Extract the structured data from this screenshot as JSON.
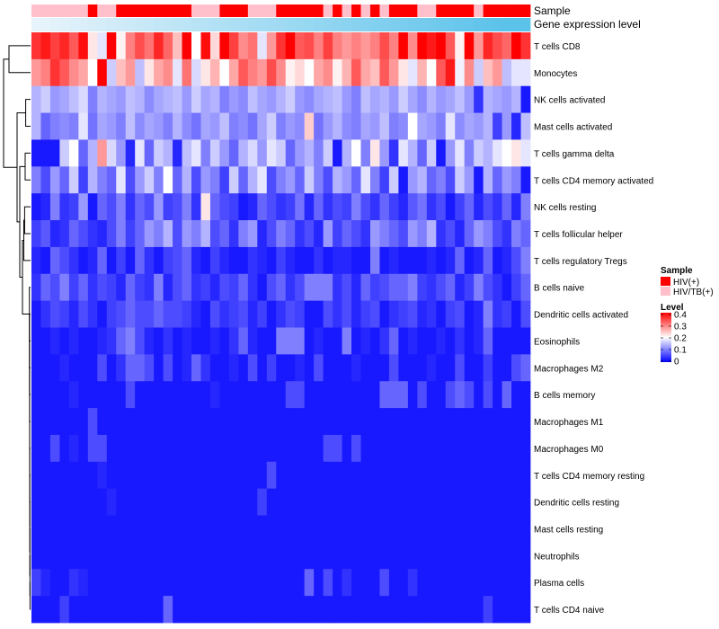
{
  "chart_data": {
    "type": "heatmap",
    "title": "",
    "annotation_tracks": [
      "Sample",
      "Gene expression level"
    ],
    "rows": [
      "T cells CD8",
      "Monocytes",
      "NK cells activated",
      "Mast cells activated",
      "T cells gamma delta",
      "T cells CD4 memory activated",
      "NK cells resting",
      "T cells follicular helper",
      "T cells regulatory  Tregs",
      "B cells naive",
      "Dendritic cells activated",
      "Eosinophils",
      "Macrophages M2",
      "B cells memory",
      "Macrophages M1",
      "Macrophages M0",
      "T cells CD4 memory resting",
      "Dendritic cells resting",
      "Mast cells resting",
      "Neutrophils",
      "Plasma cells",
      "T cells CD4 naive"
    ],
    "sample_groups": [
      "HIV/TB(+)",
      "HIV/TB(+)",
      "HIV/TB(+)",
      "HIV/TB(+)",
      "HIV/TB(+)",
      "HIV/TB(+)",
      "HIV(+)",
      "HIV/TB(+)",
      "HIV/TB(+)",
      "HIV(+)",
      "HIV(+)",
      "HIV(+)",
      "HIV(+)",
      "HIV(+)",
      "HIV(+)",
      "HIV(+)",
      "HIV(+)",
      "HIV/TB(+)",
      "HIV/TB(+)",
      "HIV/TB(+)",
      "HIV(+)",
      "HIV(+)",
      "HIV(+)",
      "HIV/TB(+)",
      "HIV/TB(+)",
      "HIV/TB(+)",
      "HIV(+)",
      "HIV(+)",
      "HIV(+)",
      "HIV(+)",
      "HIV(+)",
      "HIV/TB(+)",
      "HIV(+)",
      "HIV/TB(+)",
      "HIV(+)",
      "HIV/TB(+)",
      "HIV(+)",
      "HIV/TB(+)",
      "HIV(+)",
      "HIV(+)",
      "HIV(+)",
      "HIV/TB(+)",
      "HIV/TB(+)",
      "HIV(+)",
      "HIV(+)",
      "HIV(+)",
      "HIV(+)",
      "HIV/TB(+)",
      "HIV(+)",
      "HIV(+)",
      "HIV(+)",
      "HIV(+)",
      "HIV(+)"
    ],
    "gene_expression_level": [
      0.0,
      0.02,
      0.04,
      0.06,
      0.08,
      0.1,
      0.12,
      0.14,
      0.16,
      0.18,
      0.2,
      0.22,
      0.24,
      0.26,
      0.28,
      0.3,
      0.32,
      0.34,
      0.36,
      0.38,
      0.4,
      0.42,
      0.44,
      0.46,
      0.48,
      0.5,
      0.52,
      0.54,
      0.56,
      0.58,
      0.6,
      0.62,
      0.64,
      0.66,
      0.68,
      0.7,
      0.72,
      0.74,
      0.76,
      0.78,
      0.8,
      0.82,
      0.84,
      0.86,
      0.88,
      0.9,
      0.92,
      0.94,
      0.96,
      0.98,
      1.0,
      1.0,
      1.0
    ],
    "values": [
      [
        0.36,
        0.38,
        0.35,
        0.37,
        0.33,
        0.39,
        0.22,
        0.18,
        0.4,
        0.21,
        0.3,
        0.34,
        0.31,
        0.37,
        0.32,
        0.25,
        0.41,
        0.2,
        0.39,
        0.23,
        0.4,
        0.35,
        0.29,
        0.31,
        0.18,
        0.28,
        0.36,
        0.4,
        0.33,
        0.34,
        0.3,
        0.35,
        0.3,
        0.28,
        0.3,
        0.28,
        0.3,
        0.34,
        0.3,
        0.4,
        0.29,
        0.41,
        0.38,
        0.4,
        0.33,
        0.21,
        0.4,
        0.28,
        0.37,
        0.34,
        0.32,
        0.4,
        0.36
      ],
      [
        0.28,
        0.3,
        0.36,
        0.33,
        0.29,
        0.27,
        0.2,
        0.4,
        0.16,
        0.25,
        0.28,
        0.15,
        0.22,
        0.27,
        0.29,
        0.18,
        0.31,
        0.17,
        0.22,
        0.26,
        0.2,
        0.27,
        0.33,
        0.3,
        0.28,
        0.34,
        0.29,
        0.21,
        0.23,
        0.2,
        0.27,
        0.29,
        0.21,
        0.26,
        0.33,
        0.27,
        0.25,
        0.33,
        0.28,
        0.22,
        0.18,
        0.26,
        0.2,
        0.33,
        0.38,
        0.19,
        0.29,
        0.16,
        0.25,
        0.28,
        0.15,
        0.18,
        0.18
      ],
      [
        0.14,
        0.16,
        0.12,
        0.13,
        0.15,
        0.17,
        0.1,
        0.14,
        0.13,
        0.12,
        0.15,
        0.14,
        0.11,
        0.13,
        0.14,
        0.15,
        0.12,
        0.16,
        0.13,
        0.14,
        0.1,
        0.12,
        0.11,
        0.15,
        0.13,
        0.12,
        0.14,
        0.16,
        0.12,
        0.11,
        0.13,
        0.14,
        0.15,
        0.12,
        0.1,
        0.15,
        0.13,
        0.14,
        0.12,
        0.16,
        0.13,
        0.11,
        0.14,
        0.12,
        0.13,
        0.15,
        0.12,
        0.04,
        0.14,
        0.13,
        0.12,
        0.14,
        0.02
      ],
      [
        0.14,
        0.08,
        0.1,
        0.11,
        0.1,
        0.18,
        0.09,
        0.13,
        0.12,
        0.1,
        0.15,
        0.11,
        0.13,
        0.12,
        0.1,
        0.14,
        0.11,
        0.09,
        0.13,
        0.12,
        0.15,
        0.1,
        0.11,
        0.09,
        0.13,
        0.16,
        0.1,
        0.12,
        0.11,
        0.24,
        0.09,
        0.12,
        0.14,
        0.11,
        0.1,
        0.13,
        0.12,
        0.15,
        0.1,
        0.11,
        0.2,
        0.13,
        0.12,
        0.1,
        0.18,
        0.11,
        0.13,
        0.12,
        0.14,
        0.05,
        0.12,
        0.03,
        0.15
      ],
      [
        0.02,
        0.02,
        0.02,
        0.16,
        0.2,
        0.08,
        0.14,
        0.28,
        0.17,
        0.12,
        0.03,
        0.18,
        0.08,
        0.16,
        0.14,
        0.03,
        0.15,
        0.18,
        0.1,
        0.16,
        0.12,
        0.08,
        0.14,
        0.17,
        0.12,
        0.18,
        0.16,
        0.08,
        0.12,
        0.14,
        0.1,
        0.16,
        0.02,
        0.14,
        0.2,
        0.1,
        0.22,
        0.12,
        0.04,
        0.18,
        0.14,
        0.08,
        0.16,
        0.02,
        0.12,
        0.18,
        0.1,
        0.16,
        0.14,
        0.18,
        0.2,
        0.22,
        0.18
      ],
      [
        0.1,
        0.06,
        0.12,
        0.08,
        0.16,
        0.05,
        0.14,
        0.1,
        0.08,
        0.18,
        0.06,
        0.12,
        0.16,
        0.1,
        0.2,
        0.08,
        0.14,
        0.06,
        0.12,
        0.1,
        0.05,
        0.16,
        0.08,
        0.14,
        0.18,
        0.06,
        0.1,
        0.12,
        0.08,
        0.16,
        0.1,
        0.06,
        0.14,
        0.12,
        0.08,
        0.18,
        0.1,
        0.05,
        0.16,
        0.02,
        0.12,
        0.14,
        0.08,
        0.1,
        0.06,
        0.16,
        0.12,
        0.02,
        0.14,
        0.08,
        0.12,
        0.1,
        0.02
      ],
      [
        0.02,
        0.03,
        0.1,
        0.04,
        0.05,
        0.12,
        0.02,
        0.08,
        0.06,
        0.1,
        0.04,
        0.08,
        0.06,
        0.12,
        0.05,
        0.06,
        0.1,
        0.04,
        0.22,
        0.08,
        0.06,
        0.05,
        0.02,
        0.03,
        0.08,
        0.06,
        0.04,
        0.05,
        0.09,
        0.03,
        0.08,
        0.04,
        0.06,
        0.05,
        0.1,
        0.06,
        0.04,
        0.08,
        0.05,
        0.03,
        0.07,
        0.09,
        0.04,
        0.06,
        0.02,
        0.05,
        0.08,
        0.03,
        0.06,
        0.04,
        0.08,
        0.03,
        0.1
      ],
      [
        0.05,
        0.07,
        0.03,
        0.04,
        0.08,
        0.06,
        0.04,
        0.03,
        0.06,
        0.1,
        0.05,
        0.08,
        0.12,
        0.1,
        0.14,
        0.06,
        0.12,
        0.1,
        0.14,
        0.06,
        0.08,
        0.04,
        0.1,
        0.12,
        0.03,
        0.06,
        0.1,
        0.08,
        0.04,
        0.06,
        0.03,
        0.12,
        0.05,
        0.08,
        0.06,
        0.04,
        0.12,
        0.1,
        0.08,
        0.06,
        0.12,
        0.1,
        0.14,
        0.04,
        0.06,
        0.03,
        0.08,
        0.12,
        0.1,
        0.06,
        0.04,
        0.1,
        0.08
      ],
      [
        0.03,
        0.02,
        0.08,
        0.06,
        0.04,
        0.02,
        0.03,
        0.08,
        0.02,
        0.05,
        0.02,
        0.08,
        0.04,
        0.02,
        0.05,
        0.06,
        0.08,
        0.03,
        0.02,
        0.05,
        0.03,
        0.02,
        0.02,
        0.04,
        0.03,
        0.02,
        0.05,
        0.03,
        0.02,
        0.02,
        0.04,
        0.02,
        0.03,
        0.03,
        0.02,
        0.02,
        0.1,
        0.02,
        0.03,
        0.02,
        0.02,
        0.02,
        0.03,
        0.02,
        0.03,
        0.08,
        0.02,
        0.03,
        0.08,
        0.02,
        0.03,
        0.06,
        0.1
      ],
      [
        0.04,
        0.08,
        0.06,
        0.1,
        0.05,
        0.08,
        0.04,
        0.06,
        0.05,
        0.03,
        0.08,
        0.05,
        0.04,
        0.1,
        0.03,
        0.06,
        0.08,
        0.04,
        0.05,
        0.03,
        0.06,
        0.05,
        0.08,
        0.04,
        0.02,
        0.06,
        0.08,
        0.04,
        0.06,
        0.1,
        0.1,
        0.1,
        0.04,
        0.06,
        0.03,
        0.08,
        0.05,
        0.06,
        0.08,
        0.08,
        0.1,
        0.05,
        0.04,
        0.06,
        0.08,
        0.03,
        0.05,
        0.1,
        0.06,
        0.04,
        0.02,
        0.05,
        0.08
      ],
      [
        0.02,
        0.04,
        0.06,
        0.05,
        0.03,
        0.06,
        0.04,
        0.02,
        0.05,
        0.06,
        0.08,
        0.06,
        0.06,
        0.08,
        0.06,
        0.06,
        0.05,
        0.03,
        0.02,
        0.06,
        0.04,
        0.05,
        0.06,
        0.03,
        0.05,
        0.02,
        0.04,
        0.06,
        0.05,
        0.02,
        0.02,
        0.06,
        0.04,
        0.06,
        0.03,
        0.05,
        0.06,
        0.02,
        0.04,
        0.05,
        0.06,
        0.03,
        0.04,
        0.02,
        0.05,
        0.06,
        0.02,
        0.03,
        0.1,
        0.04,
        0.05,
        0.02,
        0.06
      ],
      [
        0.02,
        0.02,
        0.03,
        0.02,
        0.03,
        0.02,
        0.02,
        0.03,
        0.04,
        0.08,
        0.1,
        0.06,
        0.03,
        0.02,
        0.04,
        0.02,
        0.03,
        0.02,
        0.02,
        0.03,
        0.02,
        0.04,
        0.08,
        0.03,
        0.02,
        0.02,
        0.1,
        0.1,
        0.1,
        0.02,
        0.03,
        0.02,
        0.02,
        0.1,
        0.02,
        0.03,
        0.02,
        0.04,
        0.08,
        0.02,
        0.03,
        0.02,
        0.02,
        0.03,
        0.02,
        0.04,
        0.02,
        0.03,
        0.08,
        0.02,
        0.02,
        0.02,
        0.02
      ],
      [
        0.02,
        0.02,
        0.02,
        0.03,
        0.02,
        0.02,
        0.02,
        0.06,
        0.02,
        0.04,
        0.08,
        0.08,
        0.06,
        0.02,
        0.06,
        0.02,
        0.03,
        0.08,
        0.04,
        0.02,
        0.02,
        0.03,
        0.02,
        0.06,
        0.02,
        0.05,
        0.02,
        0.02,
        0.03,
        0.02,
        0.06,
        0.02,
        0.02,
        0.02,
        0.03,
        0.02,
        0.02,
        0.02,
        0.06,
        0.02,
        0.02,
        0.02,
        0.03,
        0.02,
        0.02,
        0.06,
        0.02,
        0.02,
        0.05,
        0.02,
        0.02,
        0.06,
        0.08
      ],
      [
        0.02,
        0.02,
        0.02,
        0.02,
        0.03,
        0.02,
        0.02,
        0.02,
        0.02,
        0.02,
        0.06,
        0.02,
        0.02,
        0.02,
        0.02,
        0.02,
        0.02,
        0.02,
        0.02,
        0.03,
        0.02,
        0.02,
        0.02,
        0.02,
        0.02,
        0.02,
        0.02,
        0.06,
        0.06,
        0.02,
        0.02,
        0.02,
        0.02,
        0.02,
        0.02,
        0.02,
        0.02,
        0.08,
        0.08,
        0.08,
        0.02,
        0.06,
        0.02,
        0.02,
        0.06,
        0.08,
        0.06,
        0.02,
        0.06,
        0.02,
        0.08,
        0.02,
        0.02
      ],
      [
        0.02,
        0.02,
        0.02,
        0.02,
        0.02,
        0.02,
        0.06,
        0.02,
        0.02,
        0.02,
        0.02,
        0.02,
        0.02,
        0.02,
        0.02,
        0.02,
        0.02,
        0.02,
        0.02,
        0.02,
        0.02,
        0.02,
        0.02,
        0.02,
        0.02,
        0.02,
        0.02,
        0.02,
        0.02,
        0.02,
        0.02,
        0.02,
        0.02,
        0.02,
        0.02,
        0.02,
        0.02,
        0.02,
        0.02,
        0.02,
        0.02,
        0.02,
        0.02,
        0.02,
        0.02,
        0.02,
        0.02,
        0.02,
        0.02,
        0.02,
        0.02,
        0.02,
        0.02
      ],
      [
        0.02,
        0.02,
        0.06,
        0.02,
        0.03,
        0.02,
        0.06,
        0.06,
        0.02,
        0.02,
        0.02,
        0.02,
        0.02,
        0.02,
        0.02,
        0.02,
        0.02,
        0.02,
        0.02,
        0.02,
        0.02,
        0.02,
        0.02,
        0.02,
        0.02,
        0.02,
        0.02,
        0.02,
        0.02,
        0.02,
        0.02,
        0.06,
        0.06,
        0.02,
        0.06,
        0.02,
        0.02,
        0.02,
        0.02,
        0.02,
        0.02,
        0.02,
        0.02,
        0.02,
        0.02,
        0.02,
        0.02,
        0.02,
        0.02,
        0.02,
        0.02,
        0.02,
        0.02
      ],
      [
        0.02,
        0.02,
        0.02,
        0.02,
        0.02,
        0.02,
        0.02,
        0.03,
        0.02,
        0.02,
        0.02,
        0.02,
        0.02,
        0.02,
        0.02,
        0.02,
        0.02,
        0.02,
        0.02,
        0.02,
        0.02,
        0.02,
        0.02,
        0.02,
        0.02,
        0.06,
        0.02,
        0.02,
        0.02,
        0.02,
        0.02,
        0.02,
        0.02,
        0.02,
        0.02,
        0.02,
        0.02,
        0.02,
        0.02,
        0.02,
        0.02,
        0.02,
        0.02,
        0.02,
        0.02,
        0.02,
        0.02,
        0.02,
        0.02,
        0.02,
        0.02,
        0.02,
        0.02
      ],
      [
        0.02,
        0.02,
        0.02,
        0.02,
        0.02,
        0.02,
        0.02,
        0.02,
        0.03,
        0.02,
        0.02,
        0.02,
        0.02,
        0.02,
        0.02,
        0.02,
        0.02,
        0.02,
        0.02,
        0.02,
        0.02,
        0.02,
        0.02,
        0.02,
        0.05,
        0.02,
        0.02,
        0.02,
        0.02,
        0.02,
        0.02,
        0.02,
        0.02,
        0.02,
        0.02,
        0.02,
        0.02,
        0.02,
        0.02,
        0.02,
        0.02,
        0.02,
        0.02,
        0.02,
        0.02,
        0.02,
        0.02,
        0.02,
        0.02,
        0.02,
        0.02,
        0.02,
        0.02
      ],
      [
        0.02,
        0.02,
        0.02,
        0.02,
        0.02,
        0.02,
        0.02,
        0.02,
        0.02,
        0.02,
        0.02,
        0.02,
        0.02,
        0.02,
        0.02,
        0.02,
        0.02,
        0.02,
        0.02,
        0.02,
        0.02,
        0.02,
        0.02,
        0.02,
        0.02,
        0.02,
        0.02,
        0.02,
        0.02,
        0.02,
        0.02,
        0.02,
        0.02,
        0.02,
        0.02,
        0.02,
        0.02,
        0.02,
        0.02,
        0.02,
        0.02,
        0.02,
        0.02,
        0.02,
        0.02,
        0.02,
        0.02,
        0.02,
        0.02,
        0.02,
        0.02,
        0.02,
        0.02
      ],
      [
        0.02,
        0.02,
        0.02,
        0.02,
        0.02,
        0.02,
        0.02,
        0.02,
        0.02,
        0.02,
        0.02,
        0.02,
        0.02,
        0.02,
        0.02,
        0.02,
        0.02,
        0.02,
        0.02,
        0.02,
        0.02,
        0.02,
        0.02,
        0.02,
        0.02,
        0.02,
        0.02,
        0.02,
        0.02,
        0.02,
        0.02,
        0.02,
        0.02,
        0.02,
        0.02,
        0.02,
        0.02,
        0.02,
        0.02,
        0.02,
        0.02,
        0.02,
        0.02,
        0.02,
        0.02,
        0.02,
        0.02,
        0.02,
        0.02,
        0.02,
        0.02,
        0.02,
        0.02
      ],
      [
        0.05,
        0.03,
        0.02,
        0.02,
        0.04,
        0.03,
        0.02,
        0.02,
        0.02,
        0.02,
        0.02,
        0.02,
        0.02,
        0.02,
        0.02,
        0.02,
        0.02,
        0.02,
        0.02,
        0.02,
        0.02,
        0.02,
        0.02,
        0.02,
        0.02,
        0.02,
        0.02,
        0.02,
        0.02,
        0.08,
        0.02,
        0.06,
        0.02,
        0.04,
        0.02,
        0.02,
        0.02,
        0.06,
        0.02,
        0.02,
        0.04,
        0.02,
        0.02,
        0.02,
        0.02,
        0.02,
        0.02,
        0.02,
        0.02,
        0.02,
        0.02,
        0.02,
        0.02
      ],
      [
        0.02,
        0.02,
        0.02,
        0.05,
        0.02,
        0.02,
        0.02,
        0.02,
        0.02,
        0.02,
        0.02,
        0.02,
        0.02,
        0.02,
        0.08,
        0.02,
        0.02,
        0.02,
        0.02,
        0.02,
        0.02,
        0.02,
        0.02,
        0.02,
        0.02,
        0.02,
        0.02,
        0.02,
        0.02,
        0.02,
        0.02,
        0.02,
        0.02,
        0.02,
        0.02,
        0.02,
        0.02,
        0.02,
        0.02,
        0.02,
        0.02,
        0.02,
        0.02,
        0.02,
        0.02,
        0.02,
        0.02,
        0.02,
        0.05,
        0.02,
        0.02,
        0.02,
        0.02
      ]
    ],
    "legend": {
      "sample_title": "Sample",
      "sample_entries": [
        {
          "label": "HIV(+)",
          "color": "#ff0000"
        },
        {
          "label": "HIV/TB(+)",
          "color": "#ffc0cb"
        }
      ],
      "level_title": "Level",
      "level_ticks": [
        "0.4",
        "0.3",
        "0.2",
        "0.1",
        "0"
      ],
      "level_range": [
        0,
        0.4
      ]
    },
    "colors": {
      "low": "#0000ff",
      "mid": "#ffffff",
      "high": "#ff0000",
      "expr_low": "#e8f4fb",
      "expr_high": "#5bc2ea"
    }
  }
}
